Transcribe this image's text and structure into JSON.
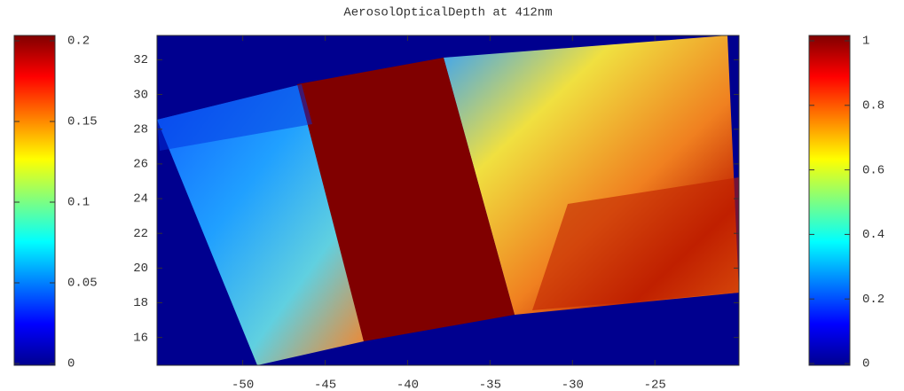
{
  "chart_data": {
    "type": "heatmap",
    "title": "AerosolOpticalDepth at 412nm",
    "xlim": [
      -55.2,
      -19.9
    ],
    "xticks": [
      -50,
      -45,
      -40,
      -35,
      -30,
      -25
    ],
    "ylim": [
      14.4,
      33.4
    ],
    "yticks": [
      16,
      18,
      20,
      22,
      24,
      26,
      28,
      30,
      32
    ],
    "colorbars": [
      {
        "clim": [
          0,
          0.2
        ],
        "ticks": [
          0,
          0.05,
          0.1,
          0.15,
          0.2
        ]
      },
      {
        "clim": [
          0,
          1
        ],
        "ticks": [
          0,
          0.2,
          0.4,
          0.6,
          0.8,
          1
        ]
      }
    ]
  }
}
